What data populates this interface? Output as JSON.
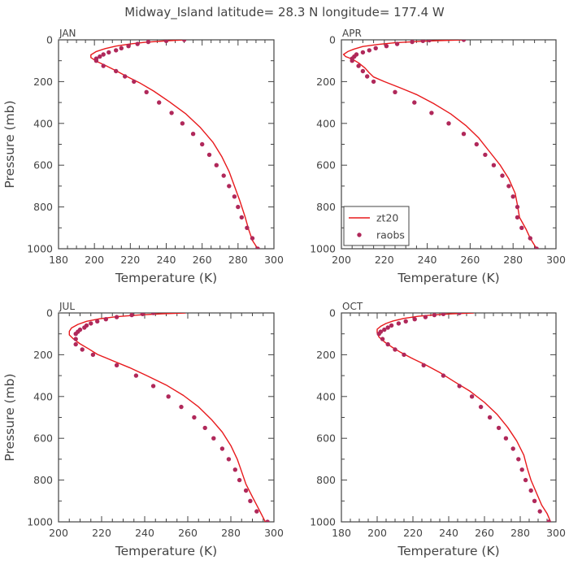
{
  "title": "Midway_Island  latitude= 28.3 N longitude= 177.4 W",
  "colors": {
    "model": "#e8191c",
    "obs": "#b0285a",
    "axis": "#444444"
  },
  "legend": {
    "placement": "bottom-left of APR panel",
    "model_label": "zt20",
    "obs_label": "raobs"
  },
  "chart_data": [
    {
      "type": "line",
      "panel_title": "JAN",
      "xlabel": "Temperature (K)",
      "ylabel": "Pressure (mb)",
      "xlim": [
        180,
        300
      ],
      "ylim": [
        1000,
        0
      ],
      "xticks": [
        180,
        200,
        220,
        240,
        260,
        280,
        300
      ],
      "yticks": [
        0,
        200,
        400,
        600,
        800,
        1000
      ],
      "series": [
        {
          "name": "zt20",
          "style": "line",
          "points": [
            [
              250,
              0
            ],
            [
              238,
              6
            ],
            [
              228,
              12
            ],
            [
              220,
              20
            ],
            [
              212,
              30
            ],
            [
              206,
              42
            ],
            [
              201,
              56
            ],
            [
              198,
              72
            ],
            [
              198,
              85
            ],
            [
              201,
              102
            ],
            [
              206,
              122
            ],
            [
              212,
              148
            ],
            [
              218,
              175
            ],
            [
              225,
              205
            ],
            [
              233,
              245
            ],
            [
              242,
              298
            ],
            [
              251,
              355
            ],
            [
              259,
              420
            ],
            [
              266,
              490
            ],
            [
              271,
              560
            ],
            [
              275,
              630
            ],
            [
              278,
              700
            ],
            [
              281,
              770
            ],
            [
              284,
              850
            ],
            [
              286,
              910
            ],
            [
              288,
              960
            ],
            [
              291,
              1000
            ]
          ]
        },
        {
          "name": "raobs",
          "style": "markers",
          "points": [
            [
              250,
              0
            ],
            [
              240,
              5
            ],
            [
              230,
              10
            ],
            [
              224,
              20
            ],
            [
              219,
              30
            ],
            [
              215,
              40
            ],
            [
              212,
              50
            ],
            [
              208,
              60
            ],
            [
              205,
              70
            ],
            [
              203,
              80
            ],
            [
              201,
              90
            ],
            [
              201,
              100
            ],
            [
              205,
              125
            ],
            [
              212,
              150
            ],
            [
              217,
              175
            ],
            [
              222,
              200
            ],
            [
              229,
              250
            ],
            [
              236,
              300
            ],
            [
              243,
              350
            ],
            [
              249,
              400
            ],
            [
              255,
              450
            ],
            [
              260,
              500
            ],
            [
              264,
              550
            ],
            [
              268,
              600
            ],
            [
              272,
              650
            ],
            [
              275,
              700
            ],
            [
              278,
              750
            ],
            [
              280,
              800
            ],
            [
              282,
              850
            ],
            [
              285,
              900
            ],
            [
              288,
              950
            ],
            [
              291,
              1000
            ]
          ]
        }
      ]
    },
    {
      "type": "line",
      "panel_title": "APR",
      "xlabel": "Temperature (K)",
      "ylabel": "",
      "xlim": [
        200,
        300
      ],
      "ylim": [
        1000,
        0
      ],
      "xticks": [
        200,
        220,
        240,
        260,
        280,
        300
      ],
      "yticks": [
        0,
        200,
        400,
        600,
        800,
        1000
      ],
      "series": [
        {
          "name": "zt20",
          "style": "line",
          "points": [
            [
              257,
              0
            ],
            [
              245,
              4
            ],
            [
              235,
              8
            ],
            [
              225,
              14
            ],
            [
              217,
              22
            ],
            [
              210,
              32
            ],
            [
              206,
              44
            ],
            [
              203,
              56
            ],
            [
              201,
              70
            ],
            [
              202,
              80
            ],
            [
              205,
              92
            ],
            [
              208,
              110
            ],
            [
              211,
              135
            ],
            [
              213,
              158
            ],
            [
              215,
              178
            ],
            [
              220,
              200
            ],
            [
              227,
              228
            ],
            [
              235,
              262
            ],
            [
              243,
              305
            ],
            [
              251,
              355
            ],
            [
              258,
              410
            ],
            [
              264,
              470
            ],
            [
              269,
              535
            ],
            [
              274,
              600
            ],
            [
              278,
              665
            ],
            [
              281,
              735
            ],
            [
              282,
              790
            ],
            [
              283,
              850
            ],
            [
              286,
              905
            ],
            [
              288,
              950
            ],
            [
              291,
              1000
            ]
          ]
        },
        {
          "name": "raobs",
          "style": "markers",
          "points": [
            [
              257,
              0
            ],
            [
              241,
              2
            ],
            [
              238,
              5
            ],
            [
              233,
              10
            ],
            [
              226,
              20
            ],
            [
              221,
              30
            ],
            [
              216,
              40
            ],
            [
              213,
              50
            ],
            [
              210,
              60
            ],
            [
              207,
              70
            ],
            [
              206,
              80
            ],
            [
              205,
              90
            ],
            [
              205,
              100
            ],
            [
              208,
              125
            ],
            [
              210,
              150
            ],
            [
              212,
              175
            ],
            [
              215,
              200
            ],
            [
              225,
              250
            ],
            [
              234,
              300
            ],
            [
              242,
              350
            ],
            [
              250,
              400
            ],
            [
              257,
              450
            ],
            [
              263,
              500
            ],
            [
              267,
              550
            ],
            [
              271,
              600
            ],
            [
              275,
              650
            ],
            [
              278,
              700
            ],
            [
              280,
              750
            ],
            [
              282,
              800
            ],
            [
              282,
              850
            ],
            [
              284,
              900
            ],
            [
              288,
              950
            ],
            [
              291,
              1000
            ]
          ]
        }
      ]
    },
    {
      "type": "line",
      "panel_title": "JUL",
      "xlabel": "Temperature (K)",
      "ylabel": "Pressure (mb)",
      "xlim": [
        200,
        300
      ],
      "ylim": [
        1000,
        0
      ],
      "xticks": [
        200,
        220,
        240,
        260,
        280,
        300
      ],
      "yticks": [
        0,
        200,
        400,
        600,
        800,
        1000
      ],
      "series": [
        {
          "name": "zt20",
          "style": "line",
          "points": [
            [
              259,
              0
            ],
            [
              248,
              4
            ],
            [
              237,
              10
            ],
            [
              227,
              18
            ],
            [
              219,
              28
            ],
            [
              213,
              40
            ],
            [
              209,
              55
            ],
            [
              206,
              72
            ],
            [
              205,
              88
            ],
            [
              205,
              105
            ],
            [
              207,
              125
            ],
            [
              210,
              148
            ],
            [
              214,
              172
            ],
            [
              218,
              198
            ],
            [
              225,
              228
            ],
            [
              233,
              262
            ],
            [
              241,
              300
            ],
            [
              250,
              345
            ],
            [
              258,
              395
            ],
            [
              265,
              450
            ],
            [
              271,
              510
            ],
            [
              276,
              570
            ],
            [
              280,
              635
            ],
            [
              283,
              700
            ],
            [
              285,
              760
            ],
            [
              287,
              820
            ],
            [
              290,
              880
            ],
            [
              293,
              940
            ],
            [
              296,
              1000
            ]
          ]
        },
        {
          "name": "raobs",
          "style": "markers",
          "points": [
            [
              244,
              0
            ],
            [
              239,
              5
            ],
            [
              234,
              10
            ],
            [
              227,
              20
            ],
            [
              222,
              30
            ],
            [
              218,
              40
            ],
            [
              215,
              50
            ],
            [
              213,
              60
            ],
            [
              212,
              70
            ],
            [
              210,
              80
            ],
            [
              209,
              90
            ],
            [
              208,
              100
            ],
            [
              208,
              125
            ],
            [
              208,
              150
            ],
            [
              211,
              175
            ],
            [
              216,
              200
            ],
            [
              227,
              250
            ],
            [
              236,
              300
            ],
            [
              244,
              350
            ],
            [
              251,
              400
            ],
            [
              257,
              450
            ],
            [
              263,
              500
            ],
            [
              268,
              550
            ],
            [
              272,
              600
            ],
            [
              276,
              650
            ],
            [
              279,
              700
            ],
            [
              282,
              750
            ],
            [
              284,
              800
            ],
            [
              287,
              850
            ],
            [
              289,
              900
            ],
            [
              292,
              950
            ],
            [
              297,
              1000
            ]
          ]
        }
      ]
    },
    {
      "type": "line",
      "panel_title": "OCT",
      "xlabel": "Temperature (K)",
      "ylabel": "",
      "xlim": [
        180,
        300
      ],
      "ylim": [
        1000,
        0
      ],
      "xticks": [
        180,
        200,
        220,
        240,
        260,
        280,
        300
      ],
      "yticks": [
        0,
        200,
        400,
        600,
        800,
        1000
      ],
      "series": [
        {
          "name": "zt20",
          "style": "line",
          "points": [
            [
              254,
              0
            ],
            [
              242,
              4
            ],
            [
              232,
              9
            ],
            [
              223,
              16
            ],
            [
              215,
              26
            ],
            [
              209,
              38
            ],
            [
              205,
              50
            ],
            [
              202,
              64
            ],
            [
              200,
              78
            ],
            [
              200,
              95
            ],
            [
              201,
              115
            ],
            [
              204,
              138
            ],
            [
              208,
              162
            ],
            [
              213,
              188
            ],
            [
              219,
              215
            ],
            [
              227,
              248
            ],
            [
              235,
              285
            ],
            [
              243,
              328
            ],
            [
              252,
              375
            ],
            [
              260,
              428
            ],
            [
              267,
              485
            ],
            [
              273,
              548
            ],
            [
              278,
              612
            ],
            [
              282,
              680
            ],
            [
              284,
              745
            ],
            [
              286,
              800
            ],
            [
              289,
              860
            ],
            [
              292,
              920
            ],
            [
              295,
              960
            ],
            [
              297,
              1000
            ]
          ]
        },
        {
          "name": "raobs",
          "style": "markers",
          "points": [
            [
              246,
              0
            ],
            [
              237,
              5
            ],
            [
              232,
              10
            ],
            [
              227,
              20
            ],
            [
              221,
              30
            ],
            [
              216,
              40
            ],
            [
              212,
              50
            ],
            [
              208,
              60
            ],
            [
              206,
              70
            ],
            [
              204,
              80
            ],
            [
              202,
              90
            ],
            [
              201,
              100
            ],
            [
              203,
              125
            ],
            [
              206,
              150
            ],
            [
              210,
              175
            ],
            [
              215,
              200
            ],
            [
              226,
              250
            ],
            [
              237,
              300
            ],
            [
              246,
              350
            ],
            [
              253,
              400
            ],
            [
              258,
              450
            ],
            [
              263,
              500
            ],
            [
              268,
              550
            ],
            [
              272,
              600
            ],
            [
              276,
              650
            ],
            [
              279,
              700
            ],
            [
              281,
              750
            ],
            [
              283,
              800
            ],
            [
              286,
              850
            ],
            [
              288,
              900
            ],
            [
              291,
              950
            ],
            [
              296,
              1000
            ]
          ]
        }
      ]
    }
  ]
}
